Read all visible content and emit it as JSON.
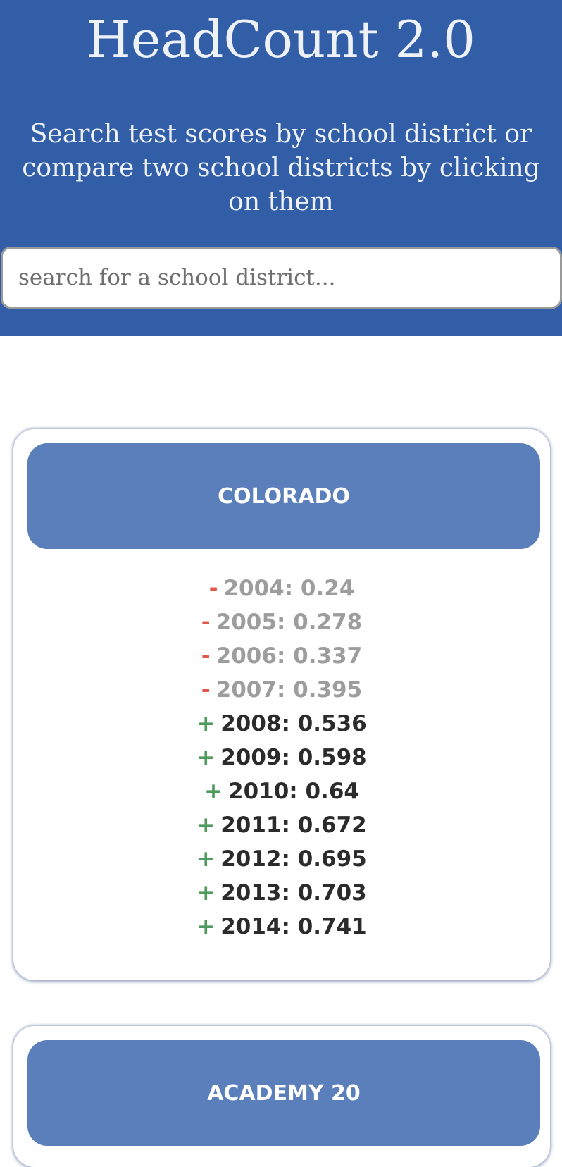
{
  "header": {
    "title": "HeadCount 2.0",
    "subtitle": "Search test scores by school district or compare two school districts by clicking on them"
  },
  "search": {
    "placeholder": "search for a school district...",
    "value": ""
  },
  "colors": {
    "header_bg": "#325ea8",
    "card_header_bg": "#5b7fba",
    "below_threshold_sign": "#e2574c",
    "above_threshold_sign": "#4f9a5e",
    "below_threshold_text": "#9d9d9d",
    "above_threshold_text": "#2b2b2b"
  },
  "districts": [
    {
      "name": "COLORADO",
      "scores": [
        {
          "sign": "-",
          "text": "2004: 0.24",
          "status": "down"
        },
        {
          "sign": "-",
          "text": "2005: 0.278",
          "status": "down"
        },
        {
          "sign": "-",
          "text": "2006: 0.337",
          "status": "down"
        },
        {
          "sign": "-",
          "text": "2007: 0.395",
          "status": "down"
        },
        {
          "sign": "+",
          "text": "2008: 0.536",
          "status": "up"
        },
        {
          "sign": "+",
          "text": "2009: 0.598",
          "status": "up"
        },
        {
          "sign": "+",
          "text": "2010: 0.64",
          "status": "up"
        },
        {
          "sign": "+",
          "text": "2011: 0.672",
          "status": "up"
        },
        {
          "sign": "+",
          "text": "2012: 0.695",
          "status": "up"
        },
        {
          "sign": "+",
          "text": "2013: 0.703",
          "status": "up"
        },
        {
          "sign": "+",
          "text": "2014: 0.741",
          "status": "up"
        }
      ]
    },
    {
      "name": "ACADEMY 20"
    }
  ]
}
